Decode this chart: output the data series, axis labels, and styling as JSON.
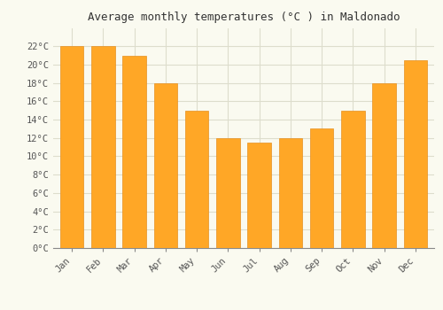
{
  "title": "Average monthly temperatures (°C ) in Maldonado",
  "months": [
    "Jan",
    "Feb",
    "Mar",
    "Apr",
    "May",
    "Jun",
    "Jul",
    "Aug",
    "Sep",
    "Oct",
    "Nov",
    "Dec"
  ],
  "values": [
    22,
    22,
    21,
    18,
    15,
    12,
    11.5,
    12,
    13,
    15,
    18,
    20.5
  ],
  "bar_color": "#FFA726",
  "bar_edge_color": "#E69020",
  "ylim": [
    0,
    24
  ],
  "yticks": [
    0,
    2,
    4,
    6,
    8,
    10,
    12,
    14,
    16,
    18,
    20,
    22
  ],
  "background_color": "#FAFAF0",
  "grid_color": "#DDDDCC",
  "title_fontsize": 9,
  "tick_fontsize": 7.5,
  "font_family": "monospace"
}
